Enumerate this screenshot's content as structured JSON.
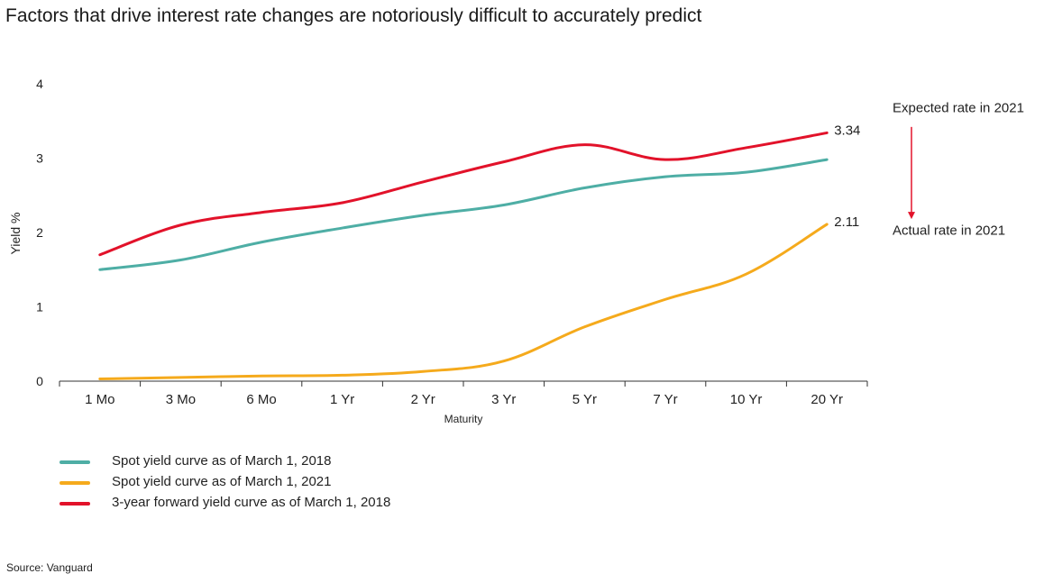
{
  "title": "Factors that drive interest rate changes are notoriously difficult to accurately predict",
  "source": "Source: Vanguard",
  "colors": {
    "spot_2018": "#4eaea5",
    "spot_2021": "#f5aa1c",
    "forward_2018": "#e2122a"
  },
  "annotations": {
    "expected": "Expected rate in 2021",
    "actual": "Actual rate in 2021"
  },
  "chart_data": {
    "type": "line",
    "xlabel": "Maturity",
    "ylabel": "Yield %",
    "ylim": [
      0,
      4
    ],
    "yticks": [
      0,
      1,
      2,
      3,
      4
    ],
    "categories": [
      "1 Mo",
      "3 Mo",
      "6 Mo",
      "1 Yr",
      "2 Yr",
      "3 Yr",
      "5 Yr",
      "7 Yr",
      "10 Yr",
      "20 Yr"
    ],
    "grid": false,
    "legend_position": "bottom-left",
    "series": [
      {
        "name": "Spot yield curve as of March 1, 2018",
        "color_key": "spot_2018",
        "values": [
          1.5,
          1.63,
          1.87,
          2.06,
          2.23,
          2.37,
          2.6,
          2.75,
          2.81,
          2.98
        ]
      },
      {
        "name": "Spot yield curve as of March 1, 2021",
        "color_key": "spot_2021",
        "values": [
          0.03,
          0.05,
          0.07,
          0.08,
          0.13,
          0.27,
          0.73,
          1.1,
          1.44,
          2.11
        ],
        "end_label": "2.11"
      },
      {
        "name": "3-year forward yield curve as of March 1, 2018",
        "color_key": "forward_2018",
        "values": [
          1.7,
          2.1,
          2.27,
          2.4,
          2.68,
          2.95,
          3.18,
          2.98,
          3.14,
          3.34
        ],
        "end_label": "3.34"
      }
    ]
  }
}
